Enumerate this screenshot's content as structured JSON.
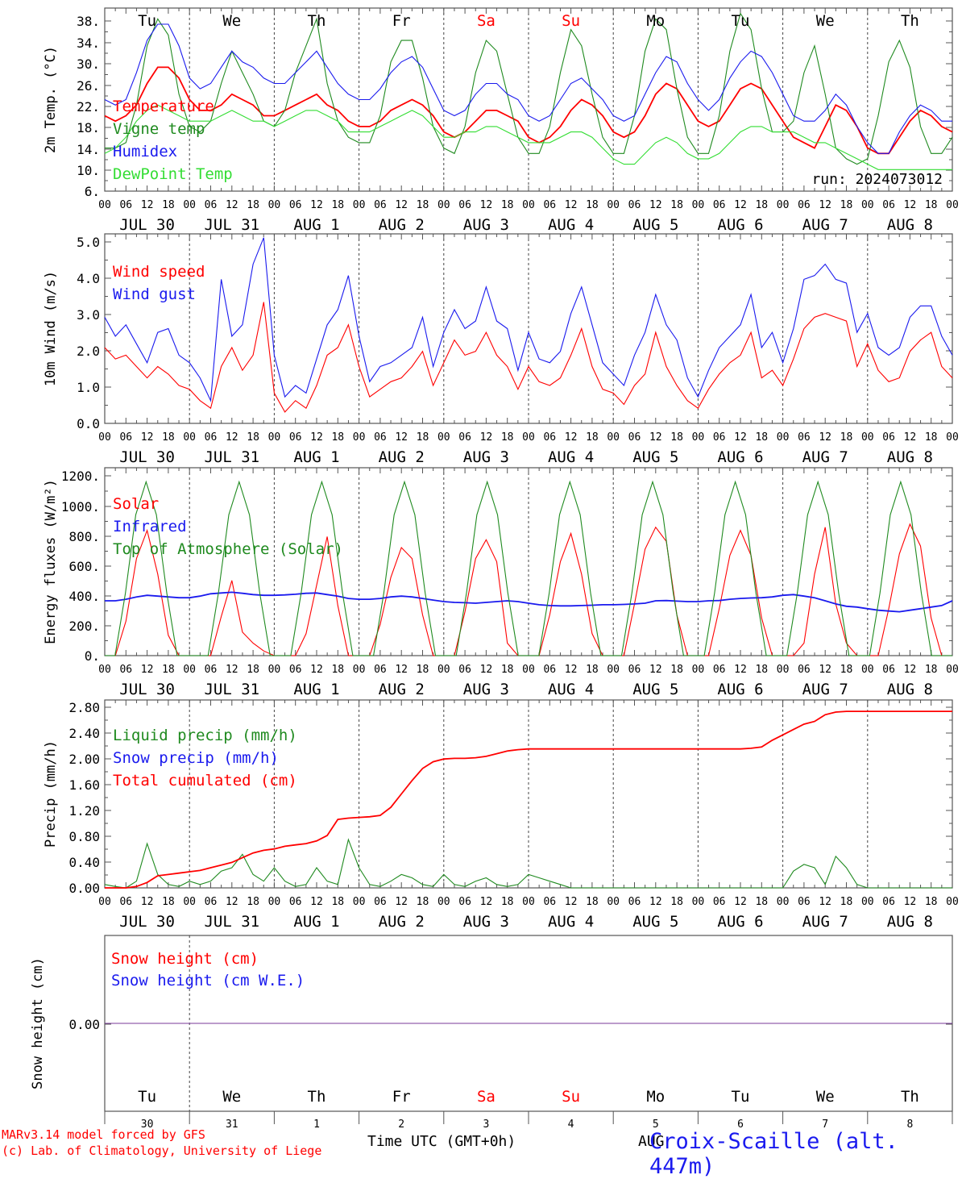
{
  "colors": {
    "red": "#ff0000",
    "green": "#1f8a1f",
    "blue": "#1a1aee",
    "lightgreen": "#33dd33",
    "purple": "#7a3a9a"
  },
  "x_hour_labels": [
    "00",
    "06",
    "12",
    "18"
  ],
  "final_hour_label": "00",
  "date_labels": [
    "JUL 30",
    "JUL 31",
    "AUG  1",
    "AUG  2",
    "AUG  3",
    "AUG  4",
    "AUG  5",
    "AUG  6",
    "AUG  7",
    "AUG  8"
  ],
  "weekdays": [
    "Tu",
    "We",
    "Th",
    "Fr",
    "Sa",
    "Su",
    "Mo",
    "Tu",
    "We",
    "Th"
  ],
  "weekday_colors": [
    "#000000",
    "#000000",
    "#000000",
    "#000000",
    "#ff0000",
    "#ff0000",
    "#000000",
    "#000000",
    "#000000",
    "#000000"
  ],
  "day_numbers": [
    "30",
    "31",
    "1",
    "2",
    "3",
    "4",
    "5",
    "6",
    "7",
    "8"
  ],
  "xlabel": "Time UTC (GMT+0h)",
  "bottom_axis_stray": "AUG",
  "footer": {
    "line1": "MARv3.14 model forced by GFS",
    "line2": "(c) Lab. of Climatology, University of Liege",
    "station": "Croix-Scaille (alt. 447m)"
  },
  "chart_data": [
    {
      "type": "line",
      "ylabel": "2m Temp. (°C)",
      "yticks": [
        "38.",
        "34.",
        "30.",
        "26.",
        "22.",
        "18.",
        "14.",
        "10.",
        "6."
      ],
      "ylim": [
        6,
        40
      ],
      "annotation": "run: 2024073012",
      "x_unit": "hours since JUL 30 00 UTC, 3-hourly",
      "series": [
        {
          "name": "Temperature",
          "color": "#ff0000",
          "values": [
            20,
            19,
            20,
            22,
            26,
            29,
            29,
            27,
            23,
            21,
            21,
            22,
            24,
            23,
            22,
            20,
            20,
            21,
            22,
            23,
            24,
            22,
            21,
            19,
            18,
            18,
            19,
            21,
            22,
            23,
            22,
            20,
            17,
            16,
            17,
            19,
            21,
            21,
            20,
            19,
            16,
            15,
            16,
            18,
            21,
            23,
            22,
            20,
            17,
            16,
            17,
            20,
            24,
            26,
            25,
            22,
            19,
            18,
            19,
            22,
            25,
            26,
            25,
            22,
            19,
            16,
            15,
            14,
            18,
            22,
            21,
            18,
            14,
            13,
            13,
            16,
            19,
            21,
            20,
            18,
            17
          ]
        },
        {
          "name": "Vigne temp",
          "color": "#1f8a1f",
          "values": [
            14,
            14,
            15,
            22,
            33,
            38,
            35,
            24,
            18,
            17,
            19,
            26,
            32,
            28,
            24,
            19,
            18,
            21,
            28,
            33,
            38,
            26,
            19,
            16,
            15,
            15,
            20,
            30,
            34,
            34,
            27,
            18,
            14,
            13,
            18,
            28,
            34,
            32,
            24,
            16,
            13,
            13,
            18,
            28,
            36,
            33,
            24,
            16,
            13,
            13,
            20,
            32,
            38,
            36,
            25,
            16,
            13,
            13,
            20,
            32,
            39,
            36,
            25,
            17,
            17,
            19,
            28,
            33,
            24,
            14,
            12,
            11,
            12,
            20,
            30,
            34,
            29,
            18,
            13,
            13,
            16
          ]
        },
        {
          "name": "Humidex",
          "color": "#1a1aee",
          "values": [
            23,
            22,
            23,
            28,
            34,
            37,
            37,
            33,
            27,
            25,
            26,
            29,
            32,
            30,
            29,
            27,
            26,
            26,
            28,
            30,
            32,
            29,
            26,
            24,
            23,
            23,
            25,
            28,
            30,
            31,
            29,
            25,
            21,
            20,
            21,
            24,
            26,
            26,
            24,
            23,
            20,
            19,
            20,
            23,
            26,
            27,
            25,
            23,
            20,
            19,
            20,
            24,
            28,
            31,
            30,
            26,
            23,
            21,
            23,
            27,
            30,
            32,
            31,
            28,
            24,
            20,
            19,
            19,
            21,
            24,
            22,
            18,
            15,
            13,
            13,
            17,
            20,
            22,
            21,
            19,
            19
          ]
        },
        {
          "name": "DewPoint Temp",
          "color": "#33dd33",
          "values": [
            13,
            14,
            16,
            19,
            21,
            22,
            21,
            20,
            19,
            19,
            19,
            20,
            21,
            20,
            19,
            19,
            18,
            19,
            20,
            21,
            21,
            20,
            19,
            17,
            17,
            17,
            18,
            19,
            20,
            21,
            20,
            18,
            16,
            16,
            17,
            17,
            18,
            18,
            17,
            16,
            15,
            15,
            15,
            16,
            17,
            17,
            16,
            14,
            12,
            11,
            11,
            13,
            15,
            16,
            15,
            13,
            12,
            12,
            13,
            15,
            17,
            18,
            18,
            17,
            17,
            17,
            16,
            15,
            15,
            14,
            13,
            12,
            11,
            10,
            10,
            10,
            10,
            10,
            10,
            10,
            10
          ]
        }
      ]
    },
    {
      "type": "line",
      "ylabel": "10m Wind (m/s)",
      "yticks": [
        "5.0",
        "4.0",
        "3.0",
        "2.0",
        "1.0",
        "0.0"
      ],
      "ylim": [
        0,
        5
      ],
      "x_unit": "hours since JUL 30 00 UTC, 3-hourly",
      "series": [
        {
          "name": "Wind speed",
          "color": "#ff0000",
          "values": [
            2.0,
            1.7,
            1.8,
            1.5,
            1.2,
            1.5,
            1.3,
            1.0,
            0.9,
            0.6,
            0.4,
            1.5,
            2.0,
            1.4,
            1.8,
            3.2,
            0.8,
            0.3,
            0.6,
            0.4,
            1.0,
            1.8,
            2.0,
            2.6,
            1.5,
            0.7,
            0.9,
            1.1,
            1.2,
            1.5,
            1.9,
            1.0,
            1.6,
            2.2,
            1.8,
            1.9,
            2.4,
            1.8,
            1.5,
            0.9,
            1.5,
            1.1,
            1.0,
            1.2,
            1.8,
            2.5,
            1.5,
            0.9,
            0.8,
            0.5,
            1.0,
            1.3,
            2.4,
            1.5,
            1.0,
            0.6,
            0.4,
            0.9,
            1.3,
            1.6,
            1.8,
            2.4,
            1.2,
            1.4,
            1.0,
            1.7,
            2.5,
            2.8,
            2.9,
            2.8,
            2.7,
            1.5,
            2.1,
            1.4,
            1.1,
            1.2,
            1.9,
            2.2,
            2.4,
            1.5,
            1.2
          ]
        },
        {
          "name": "Wind gust",
          "color": "#1a1aee",
          "values": [
            2.8,
            2.3,
            2.6,
            2.1,
            1.6,
            2.4,
            2.5,
            1.8,
            1.6,
            1.2,
            0.6,
            3.8,
            2.3,
            2.6,
            4.2,
            4.9,
            1.8,
            0.7,
            1.0,
            0.8,
            1.7,
            2.6,
            3.0,
            3.9,
            2.3,
            1.1,
            1.5,
            1.6,
            1.8,
            2.0,
            2.8,
            1.5,
            2.4,
            3.0,
            2.5,
            2.7,
            3.6,
            2.7,
            2.5,
            1.4,
            2.4,
            1.7,
            1.6,
            1.9,
            2.9,
            3.6,
            2.6,
            1.6,
            1.3,
            1.0,
            1.8,
            2.4,
            3.4,
            2.6,
            2.2,
            1.2,
            0.7,
            1.4,
            2.0,
            2.3,
            2.6,
            3.4,
            2.0,
            2.4,
            1.6,
            2.5,
            3.8,
            3.9,
            4.2,
            3.8,
            3.7,
            2.4,
            2.9,
            2.0,
            1.8,
            2.0,
            2.8,
            3.1,
            3.1,
            2.3,
            1.8
          ]
        }
      ]
    },
    {
      "type": "line",
      "ylabel": "Energy fluxes (W/m²)",
      "yticks": [
        "1200.",
        "1000.",
        "800.",
        "600.",
        "400.",
        "200.",
        "0."
      ],
      "ylim": [
        0,
        1200
      ],
      "x_unit": "hours since JUL 30 00 UTC, 3-hourly",
      "series": [
        {
          "name": "Solar",
          "color": "#ff0000",
          "values": [
            0,
            0,
            220,
            620,
            800,
            520,
            130,
            0,
            0,
            0,
            0,
            250,
            480,
            150,
            80,
            30,
            0,
            0,
            0,
            140,
            450,
            760,
            320,
            0,
            0,
            0,
            200,
            500,
            690,
            620,
            260,
            0,
            0,
            0,
            280,
            620,
            740,
            600,
            80,
            0,
            0,
            0,
            260,
            600,
            780,
            520,
            140,
            0,
            0,
            0,
            330,
            680,
            820,
            730,
            260,
            0,
            0,
            0,
            300,
            640,
            800,
            640,
            240,
            0,
            0,
            0,
            80,
            520,
            820,
            330,
            80,
            0,
            0,
            0,
            300,
            650,
            840,
            700,
            240,
            0,
            0
          ]
        },
        {
          "name": "Infrared",
          "color": "#1a1aee",
          "values": [
            350,
            350,
            360,
            375,
            385,
            380,
            375,
            370,
            370,
            380,
            395,
            400,
            405,
            398,
            390,
            385,
            385,
            388,
            392,
            398,
            400,
            390,
            380,
            365,
            360,
            360,
            365,
            375,
            380,
            375,
            365,
            355,
            345,
            340,
            338,
            335,
            340,
            345,
            350,
            345,
            335,
            325,
            320,
            318,
            318,
            320,
            322,
            325,
            325,
            327,
            330,
            335,
            350,
            352,
            348,
            345,
            345,
            350,
            352,
            360,
            365,
            368,
            370,
            375,
            385,
            390,
            380,
            370,
            350,
            330,
            315,
            310,
            300,
            290,
            285,
            280,
            290,
            300,
            310,
            320,
            350
          ]
        },
        {
          "name": "Top of Atmosphere (Solar)",
          "color": "#1f8a1f",
          "values": [
            0,
            0,
            400,
            900,
            1110,
            900,
            400,
            0,
            0,
            0,
            0,
            400,
            900,
            1110,
            900,
            400,
            0,
            0,
            0,
            400,
            900,
            1110,
            900,
            400,
            0,
            0,
            0,
            400,
            900,
            1110,
            900,
            400,
            0,
            0,
            0,
            400,
            900,
            1110,
            900,
            400,
            0,
            0,
            0,
            400,
            900,
            1110,
            900,
            400,
            0,
            0,
            0,
            400,
            900,
            1110,
            900,
            400,
            0,
            0,
            0,
            400,
            900,
            1110,
            900,
            400,
            0,
            0,
            0,
            400,
            900,
            1110,
            900,
            400,
            0,
            0,
            0,
            400,
            900,
            1110,
            900,
            400,
            0,
            0,
            0
          ]
        }
      ]
    },
    {
      "type": "line",
      "ylabel": "Precip (mm/h)",
      "yticks": [
        "2.80",
        "2.40",
        "2.00",
        "1.60",
        "1.20",
        "0.80",
        "0.40",
        "0.00"
      ],
      "ylim": [
        0,
        2.8
      ],
      "x_unit": "hours since JUL 30 00 UTC, 3-hourly",
      "series": [
        {
          "name": "Liquid precip (mm/h)",
          "color": "#1f8a1f",
          "values": [
            0.05,
            0.02,
            0.0,
            0.1,
            0.66,
            0.2,
            0.05,
            0.02,
            0.1,
            0.05,
            0.1,
            0.25,
            0.3,
            0.5,
            0.2,
            0.1,
            0.3,
            0.1,
            0.02,
            0.05,
            0.3,
            0.1,
            0.05,
            0.72,
            0.3,
            0.05,
            0.02,
            0.1,
            0.2,
            0.15,
            0.05,
            0.02,
            0.2,
            0.05,
            0.02,
            0.1,
            0.15,
            0.05,
            0.02,
            0.05,
            0.2,
            0.15,
            0.1,
            0.05,
            0.0,
            0.0,
            0.0,
            0.0,
            0.0,
            0.0,
            0.0,
            0.0,
            0.0,
            0.0,
            0.0,
            0.0,
            0.0,
            0.0,
            0.0,
            0.0,
            0.0,
            0.0,
            0.0,
            0.0,
            0.0,
            0.25,
            0.35,
            0.3,
            0.05,
            0.47,
            0.3,
            0.05,
            0.0,
            0.0,
            0.0,
            0.0,
            0.0,
            0.0,
            0.0,
            0.0,
            0.0
          ]
        },
        {
          "name": "Snow precip (mm/h)",
          "color": "#1a1aee",
          "values": []
        },
        {
          "name": "Total cumulated (cm)",
          "color": "#ff0000",
          "values": [
            0.0,
            0.0,
            0.0,
            0.02,
            0.08,
            0.18,
            0.2,
            0.22,
            0.24,
            0.26,
            0.3,
            0.34,
            0.38,
            0.45,
            0.52,
            0.56,
            0.58,
            0.62,
            0.64,
            0.66,
            0.7,
            0.78,
            1.02,
            1.04,
            1.05,
            1.06,
            1.08,
            1.2,
            1.4,
            1.6,
            1.78,
            1.88,
            1.92,
            1.93,
            1.93,
            1.94,
            1.96,
            2.0,
            2.04,
            2.06,
            2.07,
            2.07,
            2.07,
            2.07,
            2.07,
            2.07,
            2.07,
            2.07,
            2.07,
            2.07,
            2.07,
            2.07,
            2.07,
            2.07,
            2.07,
            2.07,
            2.07,
            2.07,
            2.07,
            2.07,
            2.07,
            2.08,
            2.1,
            2.2,
            2.28,
            2.36,
            2.44,
            2.48,
            2.58,
            2.62,
            2.63,
            2.63,
            2.63,
            2.63,
            2.63,
            2.63,
            2.63,
            2.63,
            2.63,
            2.63,
            2.63
          ]
        }
      ]
    },
    {
      "type": "line",
      "ylabel": "Snow height (cm)",
      "yticks": [
        "0.00"
      ],
      "ylim": [
        -1,
        1
      ],
      "x_unit": "hours since JUL 30 00 UTC, 3-hourly",
      "series": [
        {
          "name": "Snow height (cm)",
          "color": "#ff0000",
          "values": [
            0,
            0
          ]
        },
        {
          "name": "Snow height (cm W.E.)",
          "color": "#1a1aee",
          "values": [
            0,
            0
          ]
        }
      ]
    }
  ]
}
